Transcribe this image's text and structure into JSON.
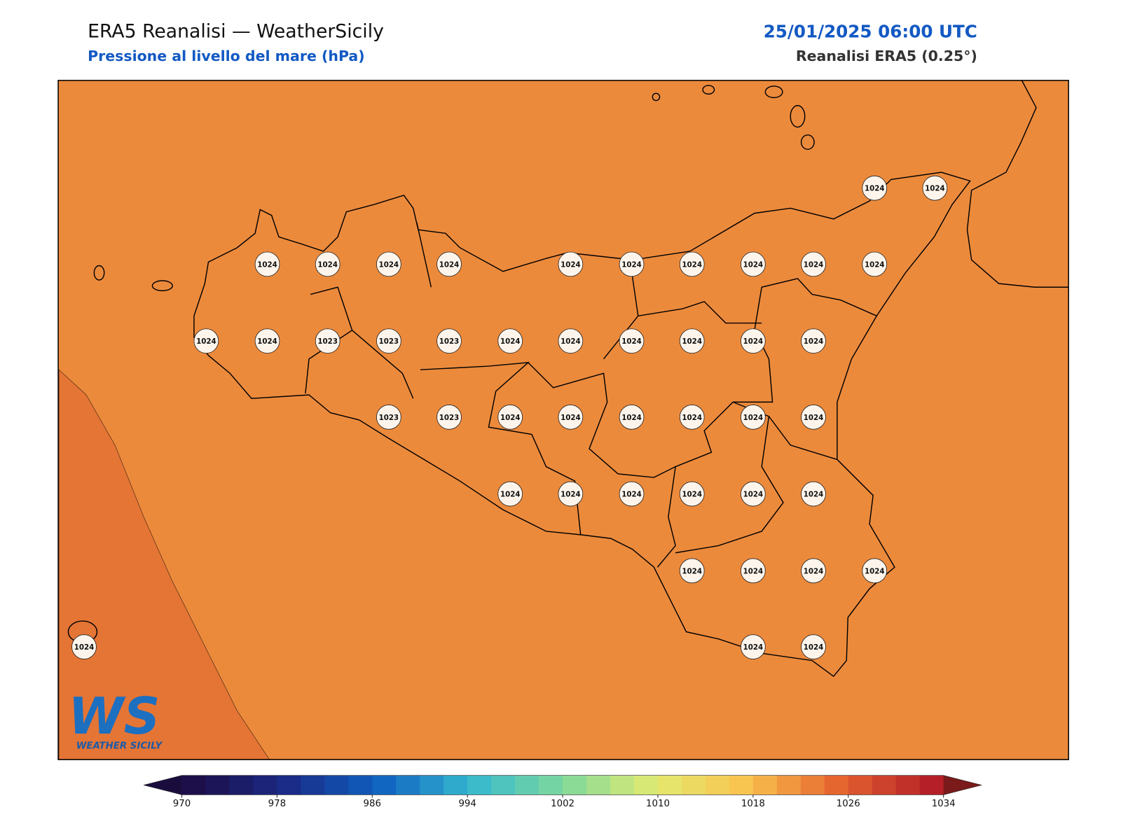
{
  "header": {
    "title": "ERA5 Reanalisi — WeatherSicily",
    "subtitle": "Pressione al livello del mare (hPa)",
    "date": "25/01/2025 06:00 UTC",
    "source": "Reanalisi ERA5 (0.25°)"
  },
  "pressure_labels": [
    1024,
    1024,
    1024,
    1024,
    1024,
    1024,
    1024,
    1024,
    1024,
    1024,
    1024,
    1024,
    1024,
    1024,
    1023,
    1023,
    1023,
    1024,
    1024,
    1024,
    1024,
    1024,
    1024,
    1023,
    1023,
    1024,
    1024,
    1024,
    1024,
    1024,
    1024,
    1024,
    1024,
    1024,
    1024,
    1024,
    1024,
    1024,
    1024,
    1024,
    1024,
    1024,
    1024,
    1024
  ],
  "colorbar": {
    "range": [
      970,
      1034
    ],
    "step": 2,
    "ticks": [
      970,
      978,
      986,
      994,
      1002,
      1010,
      1018,
      1026,
      1034
    ],
    "colors": [
      "#1d0f4a",
      "#1a2a86",
      "#0f60c0",
      "#35b8d0",
      "#7ed89c",
      "#e2ea70",
      "#f9c24e",
      "#e5632f",
      "#b41f28"
    ],
    "extend_colors": [
      "#1a0d3e",
      "#7a1a1a"
    ]
  },
  "logo": {
    "mark": "WS",
    "name": "WEATHER SICILY"
  }
}
